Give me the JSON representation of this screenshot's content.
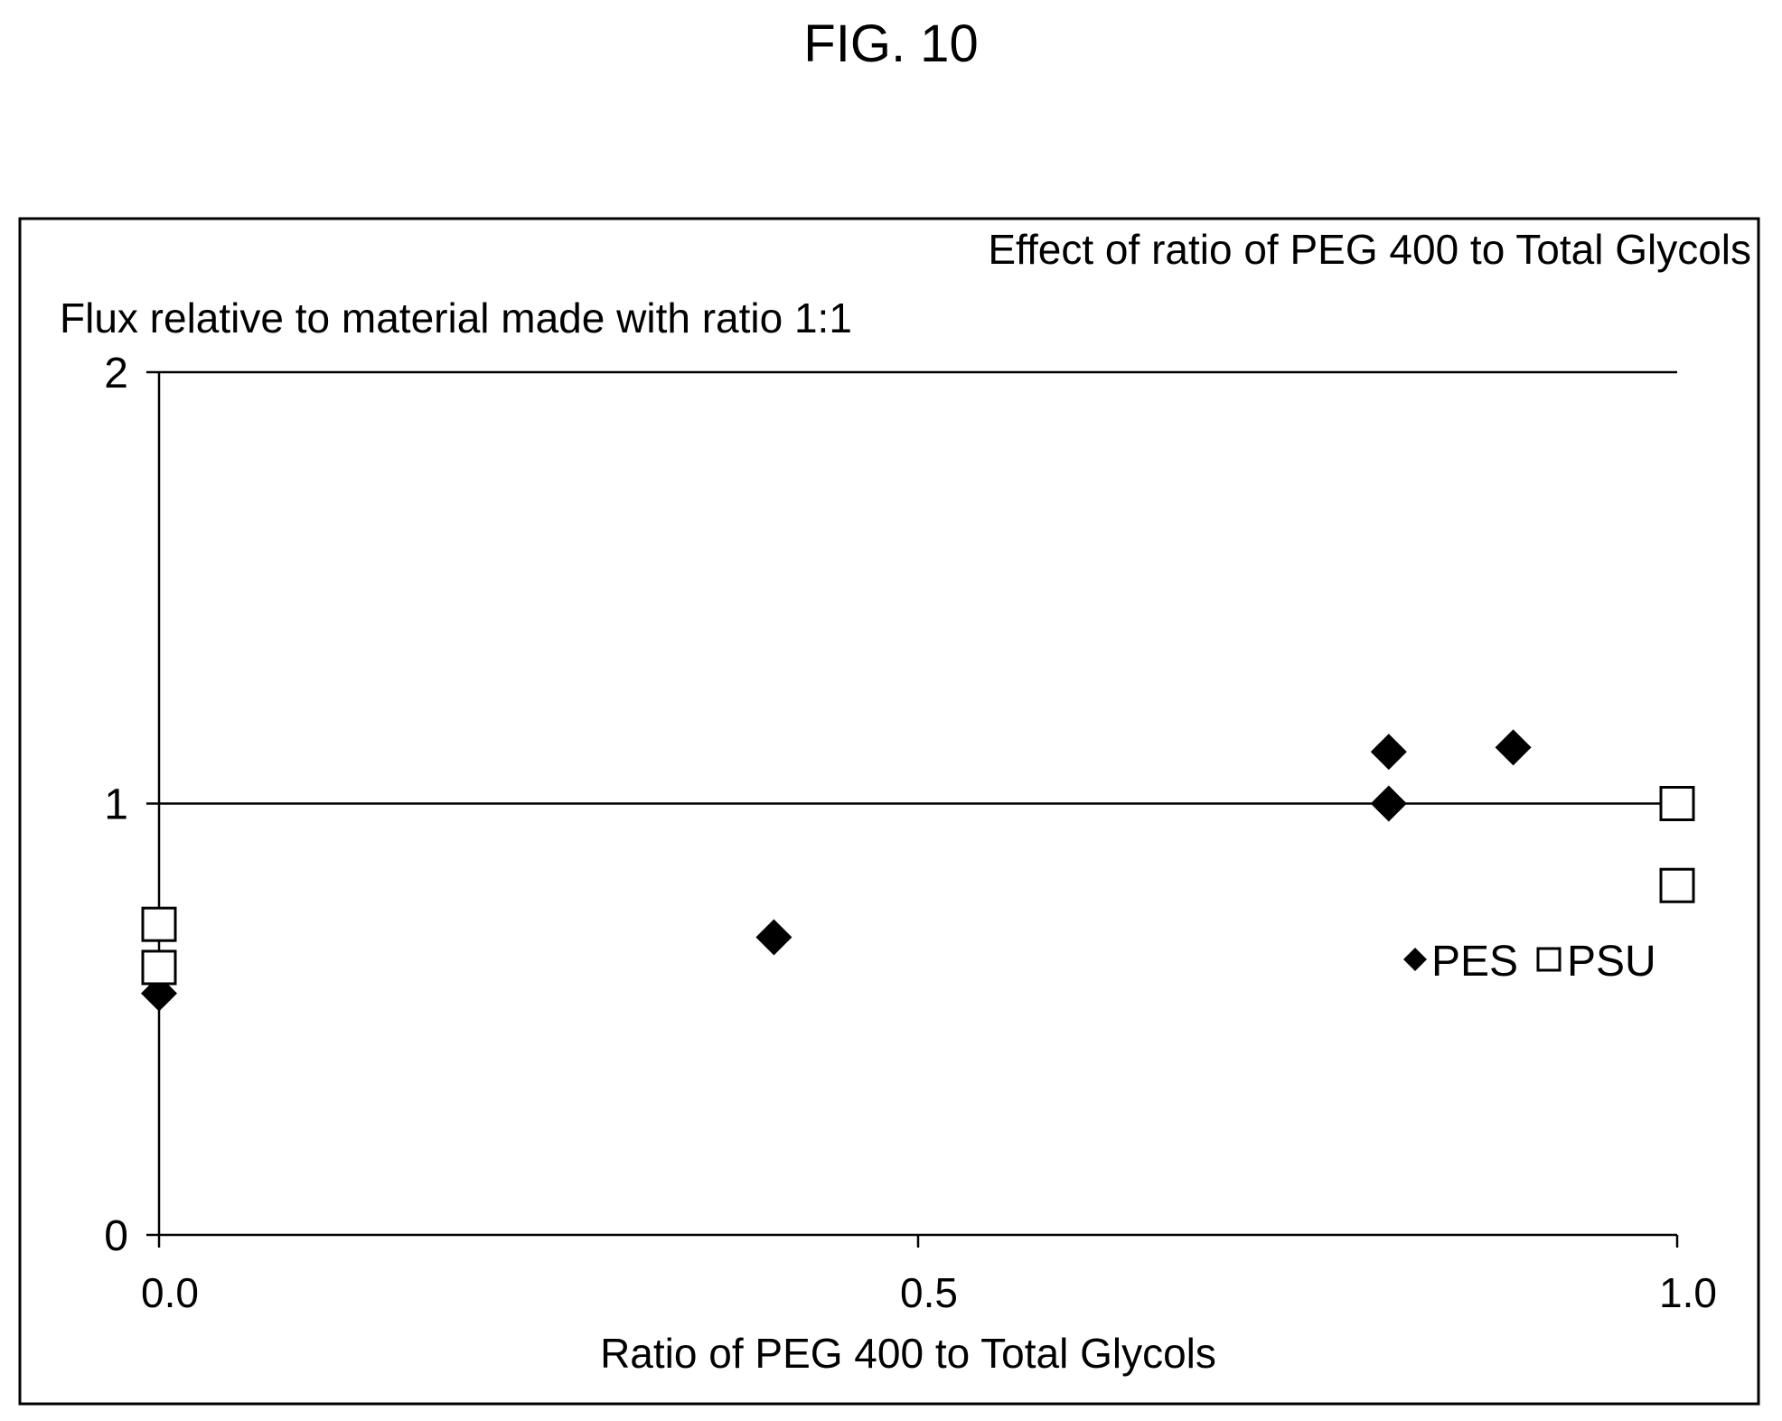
{
  "figure_label": "FIG. 10",
  "chart_data": {
    "type": "scatter",
    "title": "Effect of ratio of PEG 400 to Total Glycols",
    "ylabel": "Flux relative to material made with ratio 1:1",
    "xlabel": "Ratio of PEG 400 to Total Glycols",
    "xlim": [
      0,
      1
    ],
    "ylim": [
      0,
      2
    ],
    "x_ticks": [
      "0.0",
      "0.5",
      "1.0"
    ],
    "x_tick_values": [
      0,
      0.5,
      1.0
    ],
    "y_ticks": [
      "0",
      "1",
      "2"
    ],
    "y_tick_values": [
      0,
      1,
      2
    ],
    "grid": "horizontal",
    "legend_position": "right",
    "series": [
      {
        "name": "PES",
        "marker": "diamond-filled",
        "color": "#000000",
        "points": [
          {
            "x": 0.0,
            "y": 0.56
          },
          {
            "x": 0.405,
            "y": 0.69
          },
          {
            "x": 0.81,
            "y": 1.0
          },
          {
            "x": 0.81,
            "y": 1.12
          },
          {
            "x": 0.892,
            "y": 1.13
          }
        ]
      },
      {
        "name": "PSU",
        "marker": "square-open",
        "color": "#000000",
        "points": [
          {
            "x": 0.0,
            "y": 0.62
          },
          {
            "x": 0.0,
            "y": 0.72
          },
          {
            "x": 1.0,
            "y": 0.81
          },
          {
            "x": 1.0,
            "y": 1.0
          }
        ]
      }
    ]
  }
}
